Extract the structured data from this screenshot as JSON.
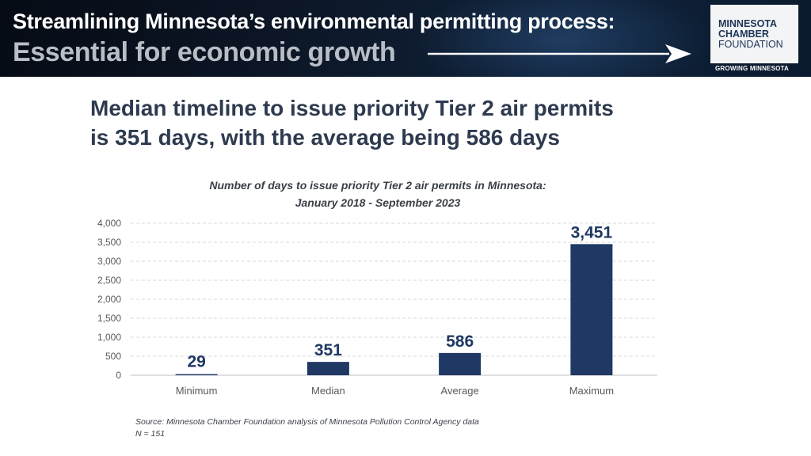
{
  "banner": {
    "line1": "Streamlining Minnesota’s environmental permitting process:",
    "line2": "Essential for economic growth",
    "arrow_icon": "right-arrow-icon"
  },
  "logo": {
    "line1": "MINNESOTA",
    "line2": "CHAMBER",
    "line3": "FOUNDATION",
    "tagline": "GROWING MINNESOTA",
    "brand_color": "#1d3557"
  },
  "headline": {
    "line1": "Median timeline to issue priority Tier 2 air permits",
    "line2": "is 351 days, with the average being 586 days"
  },
  "chart_data": {
    "type": "bar",
    "title_line1": "Number of days to issue priority Tier 2 air permits in Minnesota:",
    "title_line2": "January 2018  - September 2023",
    "categories": [
      "Minimum",
      "Median",
      "Average",
      "Maximum"
    ],
    "values": [
      29,
      351,
      586,
      3451
    ],
    "data_labels": [
      "29",
      "351",
      "586",
      "3,451"
    ],
    "yticks": [
      "0",
      "500",
      "1,000",
      "1,500",
      "2,000",
      "2,500",
      "3,000",
      "3,500",
      "4,000"
    ],
    "ylim": [
      0,
      4000
    ],
    "ystep": 500,
    "xlabel": "",
    "ylabel": "",
    "grid": true,
    "bar_color": "#1f3864",
    "label_color": "#1f3864"
  },
  "source": {
    "line1": "Source: Minnesota Chamber Foundation analysis of Minnesota Pollution Control Agency data",
    "line2": "N = 151"
  }
}
